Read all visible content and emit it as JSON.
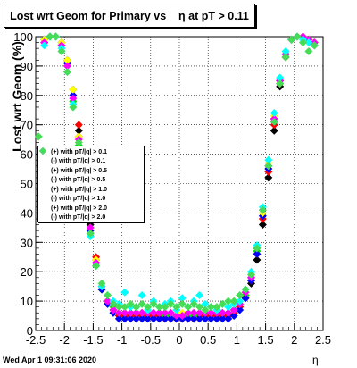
{
  "chart_data": {
    "type": "scatter",
    "title": "Lost wrt Geom for Primary vs    η at pT > 0.11",
    "xlabel": "η",
    "ylabel": "Lost wrt Geom (%)",
    "xlim": [
      -2.5,
      2.5
    ],
    "ylim": [
      0,
      100
    ],
    "x_ticks": [
      "-2.5",
      "-2",
      "-1.5",
      "-1",
      "-0.5",
      "0",
      "0.5",
      "1",
      "1.5",
      "2",
      "2.5"
    ],
    "y_ticks": [
      "0",
      "10",
      "20",
      "30",
      "40",
      "50",
      "60",
      "70",
      "80",
      "90",
      "100"
    ],
    "grid": true,
    "legend_position": "middle-left",
    "series": [
      {
        "name": "(+) with pT/|q| > 0.1",
        "color": "#000000",
        "x": [
          -2.35,
          -2.25,
          -2.15,
          -2.05,
          -1.95,
          -1.85,
          -1.75,
          -1.65,
          -1.55,
          -1.45,
          -1.35,
          -1.25,
          -1.15,
          -1.05,
          -0.95,
          -0.85,
          -0.75,
          -0.65,
          -0.55,
          -0.45,
          -0.35,
          -0.25,
          -0.15,
          -0.05,
          0.05,
          0.15,
          0.25,
          0.35,
          0.45,
          0.55,
          0.65,
          0.75,
          0.85,
          0.95,
          1.05,
          1.15,
          1.25,
          1.35,
          1.45,
          1.55,
          1.65,
          1.75,
          1.85,
          1.95,
          2.05,
          2.15,
          2.25,
          2.35
        ],
        "y": [
          99,
          100,
          100,
          98,
          92,
          82,
          68,
          52,
          36,
          24,
          14,
          10,
          7,
          5,
          5,
          5,
          5,
          5,
          5,
          5,
          5,
          5,
          5,
          4,
          4,
          4,
          4,
          5,
          5,
          5,
          5,
          5,
          5,
          6,
          8,
          11,
          16,
          24,
          36,
          52,
          68,
          83,
          93,
          99,
          100,
          100,
          99,
          98
        ]
      },
      {
        "name": "(-) with pT/|q| > 0.1",
        "color": "#ff0000",
        "x": [
          -2.35,
          -2.25,
          -2.15,
          -2.05,
          -1.95,
          -1.85,
          -1.75,
          -1.65,
          -1.55,
          -1.45,
          -1.35,
          -1.25,
          -1.15,
          -1.05,
          -0.95,
          -0.85,
          -0.75,
          -0.65,
          -0.55,
          -0.45,
          -0.35,
          -0.25,
          -0.15,
          -0.05,
          0.05,
          0.15,
          0.25,
          0.35,
          0.45,
          0.55,
          0.65,
          0.75,
          0.85,
          0.95,
          1.05,
          1.15,
          1.25,
          1.35,
          1.45,
          1.55,
          1.65,
          1.75,
          1.85,
          1.95,
          2.05,
          2.15,
          2.25,
          2.35
        ],
        "y": [
          98,
          100,
          100,
          97,
          91,
          80,
          70,
          55,
          38,
          25,
          15,
          10,
          7,
          5,
          5,
          5,
          5,
          5,
          5,
          5,
          5,
          4,
          4,
          4,
          4,
          4,
          4,
          5,
          5,
          5,
          5,
          5,
          5,
          6,
          8,
          12,
          17,
          26,
          38,
          54,
          70,
          84,
          93,
          99,
          100,
          100,
          99,
          98
        ]
      },
      {
        "name": "(+) with pT/|q| > 0.5",
        "color": "#00dd00",
        "x": [
          -2.35,
          -2.25,
          -2.15,
          -2.05,
          -1.95,
          -1.85,
          -1.75,
          -1.65,
          -1.55,
          -1.45,
          -1.35,
          -1.25,
          -1.15,
          -1.05,
          -0.95,
          -0.85,
          -0.75,
          -0.65,
          -0.55,
          -0.45,
          -0.35,
          -0.25,
          -0.15,
          -0.05,
          0.05,
          0.15,
          0.25,
          0.35,
          0.45,
          0.55,
          0.65,
          0.75,
          0.85,
          0.95,
          1.05,
          1.15,
          1.25,
          1.35,
          1.45,
          1.55,
          1.65,
          1.75,
          1.85,
          1.95,
          2.05,
          2.15,
          2.25,
          2.35
        ],
        "y": [
          99,
          100,
          100,
          97,
          90,
          78,
          63,
          48,
          33,
          22,
          14,
          10,
          8,
          6,
          6,
          6,
          6,
          6,
          6,
          6,
          6,
          5,
          5,
          5,
          5,
          5,
          5,
          6,
          6,
          6,
          6,
          6,
          6,
          7,
          9,
          12,
          18,
          27,
          40,
          56,
          72,
          85,
          94,
          99,
          100,
          100,
          99,
          98
        ]
      },
      {
        "name": "(-) with pT/|q| > 0.5",
        "color": "#0000ff",
        "x": [
          -2.35,
          -2.25,
          -2.15,
          -2.05,
          -1.95,
          -1.85,
          -1.75,
          -1.65,
          -1.55,
          -1.45,
          -1.35,
          -1.25,
          -1.15,
          -1.05,
          -0.95,
          -0.85,
          -0.75,
          -0.65,
          -0.55,
          -0.45,
          -0.35,
          -0.25,
          -0.15,
          -0.05,
          0.05,
          0.15,
          0.25,
          0.35,
          0.45,
          0.55,
          0.65,
          0.75,
          0.85,
          0.95,
          1.05,
          1.15,
          1.25,
          1.35,
          1.45,
          1.55,
          1.65,
          1.75,
          1.85,
          1.95,
          2.05,
          2.15,
          2.25,
          2.35
        ],
        "y": [
          99,
          100,
          100,
          97,
          91,
          80,
          66,
          50,
          34,
          23,
          14,
          9,
          6,
          4,
          4,
          4,
          4,
          4,
          4,
          4,
          4,
          4,
          4,
          4,
          4,
          4,
          4,
          4,
          4,
          4,
          4,
          4,
          4,
          5,
          7,
          11,
          17,
          26,
          39,
          55,
          71,
          85,
          94,
          99,
          100,
          100,
          99,
          97
        ]
      },
      {
        "name": "(+) with pT/|q| > 1.0",
        "color": "#ffff00",
        "x": [
          -2.35,
          -2.25,
          -2.15,
          -2.05,
          -1.95,
          -1.85,
          -1.75,
          -1.65,
          -1.55,
          -1.45,
          -1.35,
          -1.25,
          -1.15,
          -1.05,
          -0.95,
          -0.85,
          -0.75,
          -0.65,
          -0.55,
          -0.45,
          -0.35,
          -0.25,
          -0.15,
          -0.05,
          0.05,
          0.15,
          0.25,
          0.35,
          0.45,
          0.55,
          0.65,
          0.75,
          0.85,
          0.95,
          1.05,
          1.15,
          1.25,
          1.35,
          1.45,
          1.55,
          1.65,
          1.75,
          1.85,
          1.95,
          2.05,
          2.15,
          2.25,
          2.35
        ],
        "y": [
          99,
          100,
          100,
          98,
          92,
          82,
          66,
          50,
          35,
          24,
          15,
          10,
          7,
          6,
          6,
          6,
          6,
          6,
          6,
          6,
          6,
          6,
          6,
          6,
          6,
          6,
          6,
          6,
          6,
          6,
          6,
          6,
          6,
          7,
          9,
          13,
          19,
          28,
          40,
          57,
          73,
          86,
          95,
          99,
          100,
          100,
          99,
          98
        ]
      },
      {
        "name": "(-) with pT/|q| > 1.0",
        "color": "#ff00ff",
        "x": [
          -2.35,
          -2.25,
          -2.15,
          -2.05,
          -1.95,
          -1.85,
          -1.75,
          -1.65,
          -1.55,
          -1.45,
          -1.35,
          -1.25,
          -1.15,
          -1.05,
          -0.95,
          -0.85,
          -0.75,
          -0.65,
          -0.55,
          -0.45,
          -0.35,
          -0.25,
          -0.15,
          -0.05,
          0.05,
          0.15,
          0.25,
          0.35,
          0.45,
          0.55,
          0.65,
          0.75,
          0.85,
          0.95,
          1.05,
          1.15,
          1.25,
          1.35,
          1.45,
          1.55,
          1.65,
          1.75,
          1.85,
          1.95,
          2.05,
          2.15,
          2.25,
          2.35
        ],
        "y": [
          98,
          100,
          100,
          97,
          90,
          79,
          65,
          50,
          35,
          23,
          15,
          10,
          7,
          6,
          6,
          6,
          6,
          6,
          6,
          6,
          6,
          6,
          6,
          5,
          5,
          6,
          6,
          6,
          6,
          6,
          6,
          6,
          6,
          7,
          9,
          13,
          18,
          28,
          41,
          56,
          72,
          85,
          94,
          99,
          100,
          100,
          99,
          98
        ]
      },
      {
        "name": "(+) with pT/|q| > 2.0",
        "color": "#00ffff",
        "x": [
          -2.35,
          -2.25,
          -2.15,
          -2.05,
          -1.95,
          -1.85,
          -1.75,
          -1.65,
          -1.55,
          -1.45,
          -1.35,
          -1.25,
          -1.15,
          -1.05,
          -0.95,
          -0.85,
          -0.75,
          -0.65,
          -0.55,
          -0.45,
          -0.35,
          -0.25,
          -0.15,
          -0.05,
          0.05,
          0.15,
          0.25,
          0.35,
          0.45,
          0.55,
          0.65,
          0.75,
          0.85,
          0.95,
          1.05,
          1.15,
          1.25,
          1.35,
          1.45,
          1.55,
          1.65,
          1.75,
          1.85,
          1.95,
          2.05,
          2.15,
          2.25,
          2.35
        ],
        "y": [
          97,
          100,
          100,
          96,
          88,
          77,
          62,
          46,
          32,
          22,
          15,
          12,
          10,
          9,
          13,
          8,
          8,
          12,
          7,
          10,
          8,
          9,
          10,
          7,
          11,
          8,
          10,
          12,
          9,
          8,
          7,
          9,
          8,
          9,
          10,
          14,
          20,
          29,
          42,
          58,
          74,
          86,
          95,
          99,
          100,
          99,
          98,
          97
        ]
      },
      {
        "name": "(-) with pT/|q| > 2.0",
        "color": "#44dd55",
        "x": [
          -2.45,
          -2.25,
          -2.15,
          -2.05,
          -1.95,
          -1.85,
          -1.75,
          -1.65,
          -1.55,
          -1.45,
          -1.35,
          -1.25,
          -1.15,
          -1.05,
          -0.95,
          -0.85,
          -0.75,
          -0.65,
          -0.55,
          -0.45,
          -0.35,
          -0.25,
          -0.15,
          -0.05,
          0.05,
          0.15,
          0.25,
          0.35,
          0.45,
          0.55,
          0.65,
          0.75,
          0.85,
          0.95,
          1.05,
          1.15,
          1.25,
          1.35,
          1.45,
          1.55,
          1.65,
          1.75,
          1.85,
          1.95,
          2.05,
          2.15,
          2.25,
          2.35
        ],
        "y": [
          66,
          100,
          100,
          95,
          88,
          76,
          64,
          47,
          33,
          22,
          16,
          12,
          9,
          8,
          8,
          9,
          8,
          9,
          8,
          9,
          8,
          8,
          9,
          8,
          9,
          8,
          9,
          8,
          7,
          8,
          8,
          9,
          10,
          10,
          12,
          14,
          19,
          28,
          41,
          56,
          71,
          84,
          93,
          99,
          100,
          98,
          95,
          97
        ]
      }
    ]
  },
  "footer": {
    "datestamp": "Wed Apr  1 09:31:06 2020"
  }
}
